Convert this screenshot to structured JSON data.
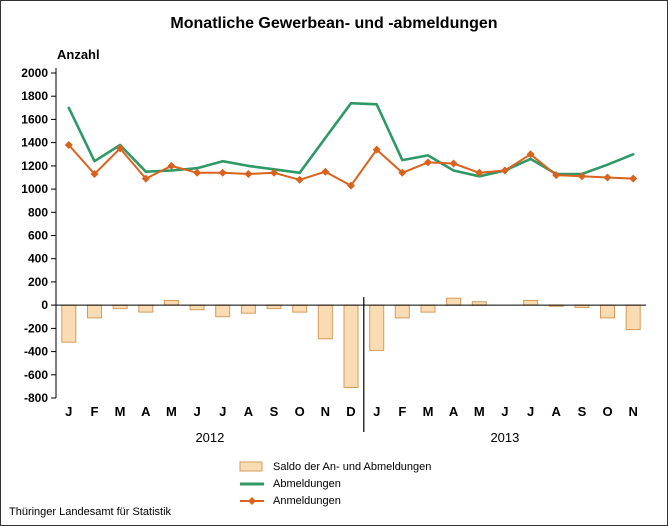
{
  "title": "Monatliche Gewerbean- und -abmeldungen",
  "footer": "Thüringer Landesamt für Statistik",
  "chart_data": {
    "type": "bar+line",
    "title": "Monatliche Gewerbean- und -abmeldungen",
    "xlabel": "",
    "ylabel": "Anzahl",
    "ylim": [
      -800,
      2000
    ],
    "yticks": [
      2000,
      1800,
      1600,
      1400,
      1200,
      1000,
      800,
      600,
      400,
      200,
      0,
      -200,
      -400,
      -600,
      -800
    ],
    "grid": false,
    "legend_position": "bottom",
    "categories": [
      "J",
      "F",
      "M",
      "A",
      "M",
      "J",
      "J",
      "A",
      "S",
      "O",
      "N",
      "D",
      "J",
      "F",
      "M",
      "A",
      "M",
      "J",
      "J",
      "A",
      "S",
      "O",
      "N"
    ],
    "year_groups": [
      {
        "label": "2012",
        "start": 0,
        "end": 11
      },
      {
        "label": "2013",
        "start": 12,
        "end": 22
      }
    ],
    "series": [
      {
        "name": "Saldo der An- und Abmeldungen",
        "type": "bar",
        "color": "#FADCB4",
        "border": "#D79B5C",
        "values": [
          -320,
          -110,
          -30,
          -60,
          40,
          -40,
          -100,
          -70,
          -30,
          -60,
          -290,
          -710,
          -390,
          -110,
          -60,
          60,
          30,
          0,
          40,
          -10,
          -20,
          -110,
          -210
        ]
      },
      {
        "name": "Abmeldungen",
        "type": "line",
        "color": "#2E9966",
        "values": [
          1700,
          1240,
          1380,
          1150,
          1160,
          1180,
          1240,
          1200,
          1170,
          1140,
          1440,
          1740,
          1730,
          1250,
          1290,
          1160,
          1110,
          1160,
          1260,
          1130,
          1130,
          1210,
          1300
        ]
      },
      {
        "name": "Anmeldungen",
        "type": "line",
        "marker": "diamond",
        "color": "#D9621E",
        "values": [
          1380,
          1130,
          1350,
          1090,
          1200,
          1140,
          1140,
          1130,
          1140,
          1080,
          1150,
          1030,
          1340,
          1140,
          1230,
          1220,
          1140,
          1160,
          1300,
          1120,
          1110,
          1100,
          1090
        ]
      }
    ]
  }
}
